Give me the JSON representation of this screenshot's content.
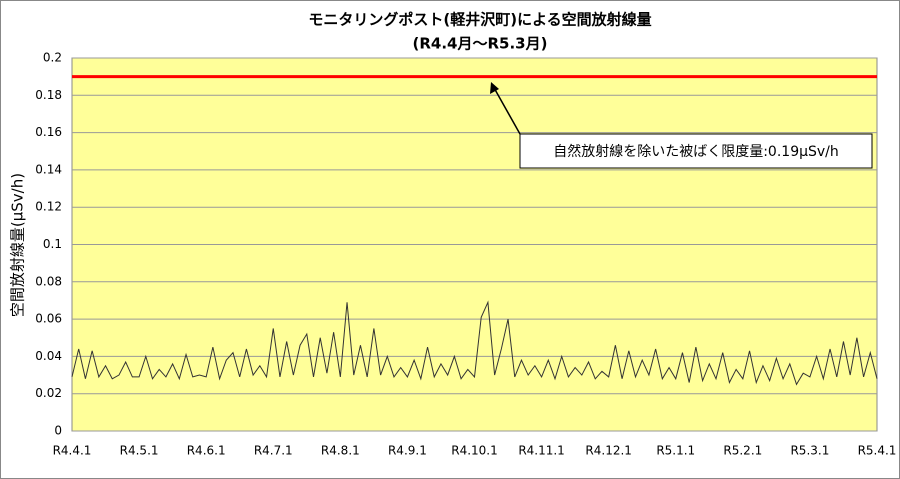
{
  "chart_data": {
    "type": "line",
    "title": "モニタリングポスト(軽井沢町)による空間放射線量",
    "subtitle": "(R4.4月〜R5.3月)",
    "y_label": "空間放射線量(μSv/h)",
    "categories": [
      "R4.4.1",
      null,
      null,
      null,
      null,
      null,
      null,
      null,
      null,
      null,
      "R4.5.1",
      null,
      null,
      null,
      null,
      null,
      null,
      null,
      null,
      null,
      "R4.6.1",
      null,
      null,
      null,
      null,
      null,
      null,
      null,
      null,
      null,
      "R4.7.1",
      null,
      null,
      null,
      null,
      null,
      null,
      null,
      null,
      null,
      "R4.8.1",
      null,
      null,
      null,
      null,
      null,
      null,
      null,
      null,
      null,
      "R4.9.1",
      null,
      null,
      null,
      null,
      null,
      null,
      null,
      null,
      null,
      "R4.10.1",
      null,
      null,
      null,
      null,
      null,
      null,
      null,
      null,
      null,
      "R4.11.1",
      null,
      null,
      null,
      null,
      null,
      null,
      null,
      null,
      null,
      "R4.12.1",
      null,
      null,
      null,
      null,
      null,
      null,
      null,
      null,
      null,
      "R5.1.1",
      null,
      null,
      null,
      null,
      null,
      null,
      null,
      null,
      null,
      "R5.2.1",
      null,
      null,
      null,
      null,
      null,
      null,
      null,
      null,
      null,
      "R5.3.1",
      null,
      null,
      null,
      null,
      null,
      null,
      null,
      null,
      null,
      "R5.4.1"
    ],
    "series": [
      {
        "color": "#333333",
        "values": [
          0.029,
          0.044,
          0.028,
          0.043,
          0.029,
          0.035,
          0.028,
          0.03,
          0.037,
          0.029,
          0.029,
          0.04,
          0.028,
          0.033,
          0.029,
          0.036,
          0.028,
          0.041,
          0.029,
          0.03,
          0.029,
          0.045,
          0.028,
          0.038,
          0.042,
          0.029,
          0.044,
          0.03,
          0.035,
          0.029,
          0.055,
          0.029,
          0.048,
          0.03,
          0.046,
          0.052,
          0.029,
          0.05,
          0.031,
          0.053,
          0.029,
          0.069,
          0.03,
          0.046,
          0.029,
          0.055,
          0.03,
          0.04,
          0.029,
          0.034,
          0.029,
          0.038,
          0.028,
          0.045,
          0.029,
          0.036,
          0.03,
          0.04,
          0.028,
          0.033,
          0.029,
          0.061,
          0.069,
          0.03,
          0.044,
          0.06,
          0.029,
          0.038,
          0.03,
          0.035,
          0.029,
          0.038,
          0.028,
          0.04,
          0.029,
          0.034,
          0.03,
          0.037,
          0.028,
          0.032,
          0.029,
          0.046,
          0.028,
          0.043,
          0.029,
          0.038,
          0.03,
          0.044,
          0.028,
          0.034,
          0.028,
          0.042,
          0.026,
          0.045,
          0.027,
          0.036,
          0.028,
          0.042,
          0.026,
          0.033,
          0.028,
          0.043,
          0.026,
          0.035,
          0.027,
          0.039,
          0.028,
          0.036,
          0.025,
          0.031,
          0.029,
          0.04,
          0.028,
          0.044,
          0.029,
          0.048,
          0.03,
          0.05,
          0.029,
          0.042,
          0.028
        ]
      }
    ],
    "ylim": [
      0,
      0.2
    ],
    "yticks": [
      0,
      0.02,
      0.04,
      0.06,
      0.08,
      0.1,
      0.12,
      0.14,
      0.16,
      0.18,
      0.2
    ],
    "grid": true,
    "plot_background": "#ffff99",
    "reference_line": {
      "value": 0.19,
      "color": "#ff0000",
      "label": "自然放射線を除いた被ばく限度量:0.19μSv/h"
    }
  }
}
